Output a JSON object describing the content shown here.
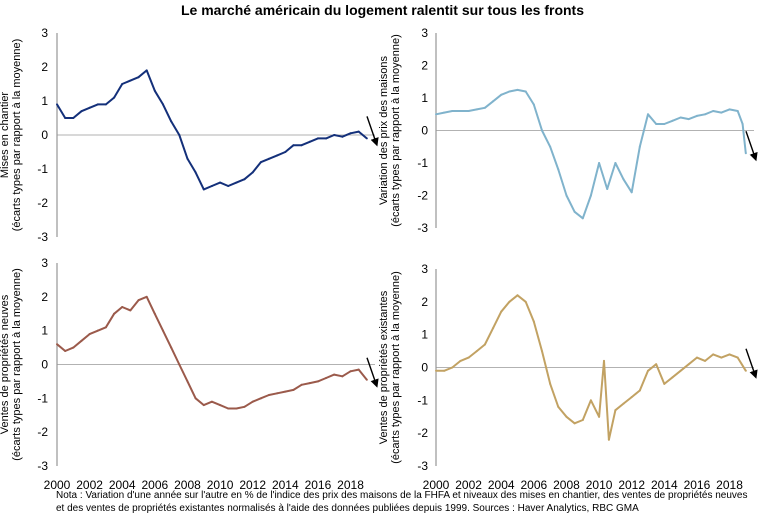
{
  "title": "Le marché américain du logement ralentit sur tous les fronts",
  "note": "Nota : Variation d'une année sur l'autre en % de l'indice des prix des maisons de la FHFA et niveaux des mises en chantier, des ventes de propriétés neuves et des ventes de propriétés existantes normalisés à l'aide des données publiées depuis 1999. Sources : Haver Analytics, RBC GMA",
  "chart_data": [
    {
      "type": "line",
      "panel": "top-left",
      "ylabel_line1": "Mises en chantier",
      "ylabel_line2": "(écarts types par rapport à la moyenne)",
      "ylim": [
        -3,
        3
      ],
      "yticks": [
        "3",
        "2",
        "1",
        "0",
        "-1",
        "-2",
        "-3"
      ],
      "xlim": [
        2000,
        2019.5
      ],
      "xticks": [],
      "color": "#14307a",
      "x": [
        2000.0,
        2000.5,
        2001.0,
        2001.5,
        2002.0,
        2002.5,
        2003.0,
        2003.5,
        2004.0,
        2004.5,
        2005.0,
        2005.5,
        2006.0,
        2006.5,
        2007.0,
        2007.5,
        2008.0,
        2008.5,
        2009.0,
        2009.5,
        2010.0,
        2010.5,
        2011.0,
        2011.5,
        2012.0,
        2012.5,
        2013.0,
        2013.5,
        2014.0,
        2014.5,
        2015.0,
        2015.5,
        2016.0,
        2016.5,
        2017.0,
        2017.5,
        2018.0,
        2018.5,
        2019.0
      ],
      "y": [
        0.9,
        0.5,
        0.5,
        0.7,
        0.8,
        0.9,
        0.9,
        1.1,
        1.5,
        1.6,
        1.7,
        1.9,
        1.3,
        0.9,
        0.4,
        0.0,
        -0.7,
        -1.1,
        -1.6,
        -1.5,
        -1.4,
        -1.5,
        -1.4,
        -1.3,
        -1.1,
        -0.8,
        -0.7,
        -0.6,
        -0.5,
        -0.3,
        -0.3,
        -0.2,
        -0.1,
        -0.1,
        0.0,
        -0.05,
        0.05,
        0.1,
        -0.1
      ],
      "arrow": "down"
    },
    {
      "type": "line",
      "panel": "top-right",
      "ylabel_line1": "Variation des prix des maisons",
      "ylabel_line2": "(écarts types par rapport à la moyenne)",
      "ylim": [
        -3,
        3
      ],
      "yticks": [
        "3",
        "2",
        "1",
        "0",
        "-1",
        "-2",
        "-3"
      ],
      "xlim": [
        2000,
        2019.5
      ],
      "xticks": [],
      "color": "#80b3cc",
      "x": [
        2000.0,
        2000.5,
        2001.0,
        2001.5,
        2002.0,
        2002.5,
        2003.0,
        2003.5,
        2004.0,
        2004.5,
        2005.0,
        2005.5,
        2006.0,
        2006.5,
        2007.0,
        2007.5,
        2008.0,
        2008.5,
        2009.0,
        2009.5,
        2010.0,
        2010.5,
        2011.0,
        2011.5,
        2012.0,
        2012.5,
        2013.0,
        2013.5,
        2014.0,
        2014.5,
        2015.0,
        2015.5,
        2016.0,
        2016.5,
        2017.0,
        2017.5,
        2018.0,
        2018.5,
        2018.8,
        2019.0
      ],
      "y": [
        0.5,
        0.55,
        0.6,
        0.6,
        0.6,
        0.65,
        0.7,
        0.9,
        1.1,
        1.2,
        1.25,
        1.2,
        0.8,
        0.0,
        -0.5,
        -1.2,
        -2.0,
        -2.5,
        -2.7,
        -2.0,
        -1.0,
        -1.8,
        -1.0,
        -1.5,
        -1.9,
        -0.5,
        0.5,
        0.2,
        0.2,
        0.3,
        0.4,
        0.35,
        0.45,
        0.5,
        0.6,
        0.55,
        0.65,
        0.6,
        0.2,
        -0.7
      ],
      "arrow": "down"
    },
    {
      "type": "line",
      "panel": "bottom-left",
      "ylabel_line1": "Ventes de propriétés neuves",
      "ylabel_line2": "(écarts types par rapport à la moyenne)",
      "ylim": [
        -3,
        3
      ],
      "yticks": [
        "3",
        "2",
        "1",
        "0",
        "-1",
        "-2",
        "-3"
      ],
      "xlim": [
        2000,
        2019.5
      ],
      "xticks": [
        "2000",
        "2002",
        "2004",
        "2006",
        "2008",
        "2010",
        "2012",
        "2014",
        "2016",
        "2018"
      ],
      "color": "#9b5a4b",
      "x": [
        2000.0,
        2000.5,
        2001.0,
        2001.5,
        2002.0,
        2002.5,
        2003.0,
        2003.5,
        2004.0,
        2004.5,
        2005.0,
        2005.5,
        2006.0,
        2006.5,
        2007.0,
        2007.5,
        2008.0,
        2008.5,
        2009.0,
        2009.5,
        2010.0,
        2010.5,
        2011.0,
        2011.5,
        2012.0,
        2012.5,
        2013.0,
        2013.5,
        2014.0,
        2014.5,
        2015.0,
        2015.5,
        2016.0,
        2016.5,
        2017.0,
        2017.5,
        2018.0,
        2018.5,
        2019.0
      ],
      "y": [
        0.6,
        0.4,
        0.5,
        0.7,
        0.9,
        1.0,
        1.1,
        1.5,
        1.7,
        1.6,
        1.9,
        2.0,
        1.5,
        1.0,
        0.5,
        0.0,
        -0.5,
        -1.0,
        -1.2,
        -1.1,
        -1.2,
        -1.3,
        -1.3,
        -1.25,
        -1.1,
        -1.0,
        -0.9,
        -0.85,
        -0.8,
        -0.75,
        -0.6,
        -0.55,
        -0.5,
        -0.4,
        -0.3,
        -0.35,
        -0.2,
        -0.15,
        -0.45
      ],
      "arrow": "down"
    },
    {
      "type": "line",
      "panel": "bottom-right",
      "ylabel_line1": "Ventes de propriétés existantes",
      "ylabel_line2": "(écarts types par rapport à la moyenne)",
      "ylim": [
        -3,
        3
      ],
      "yticks": [
        "3",
        "2",
        "1",
        "0",
        "-1",
        "-2",
        "-3"
      ],
      "xlim": [
        2000,
        2019.5
      ],
      "xticks": [
        "2000",
        "2002",
        "2004",
        "2006",
        "2008",
        "2010",
        "2012",
        "2014",
        "2016",
        "2018"
      ],
      "color": "#c2a263",
      "x": [
        2000.0,
        2000.5,
        2001.0,
        2001.5,
        2002.0,
        2002.5,
        2003.0,
        2003.5,
        2004.0,
        2004.5,
        2005.0,
        2005.5,
        2006.0,
        2006.5,
        2007.0,
        2007.5,
        2008.0,
        2008.5,
        2009.0,
        2009.5,
        2010.0,
        2010.3,
        2010.6,
        2011.0,
        2011.5,
        2012.0,
        2012.5,
        2013.0,
        2013.5,
        2014.0,
        2014.5,
        2015.0,
        2015.5,
        2016.0,
        2016.5,
        2017.0,
        2017.5,
        2018.0,
        2018.5,
        2019.0
      ],
      "y": [
        -0.1,
        -0.1,
        0.0,
        0.2,
        0.3,
        0.5,
        0.7,
        1.2,
        1.7,
        2.0,
        2.2,
        2.0,
        1.4,
        0.5,
        -0.5,
        -1.2,
        -1.5,
        -1.7,
        -1.6,
        -1.0,
        -1.5,
        0.2,
        -2.2,
        -1.3,
        -1.1,
        -0.9,
        -0.7,
        -0.1,
        0.1,
        -0.5,
        -0.3,
        -0.1,
        0.1,
        0.3,
        0.2,
        0.4,
        0.3,
        0.4,
        0.3,
        -0.1
      ],
      "arrow": "down"
    }
  ]
}
